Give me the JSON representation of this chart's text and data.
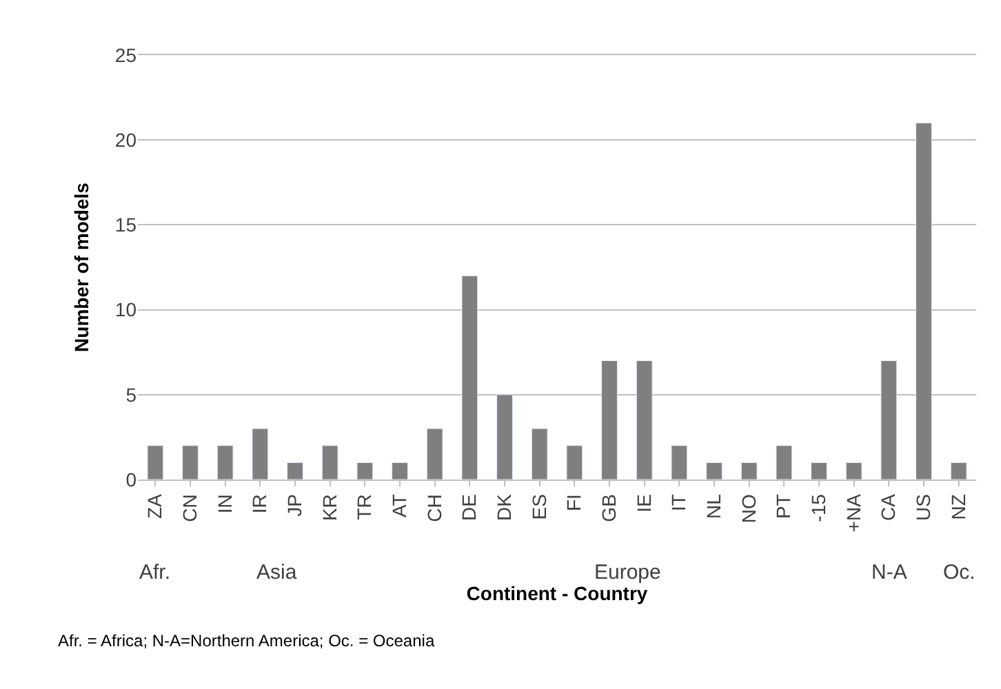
{
  "chart_data": {
    "type": "bar",
    "xlabel": "Continent - Country",
    "ylabel": "Number of models",
    "categories": [
      "ZA",
      "CN",
      "IN",
      "IR",
      "JP",
      "KR",
      "TR",
      "AT",
      "CH",
      "DE",
      "DK",
      "ES",
      "FI",
      "GB",
      "IE",
      "IT",
      "NL",
      "NO",
      "PT",
      "-15",
      "+NA",
      "CA",
      "US",
      "NZ"
    ],
    "values": [
      2,
      2,
      2,
      3,
      1,
      2,
      1,
      1,
      3,
      12,
      5,
      3,
      2,
      7,
      7,
      2,
      1,
      1,
      2,
      1,
      1,
      7,
      21,
      1
    ],
    "color": "#7f7f7f",
    "ylim": [
      0,
      25
    ],
    "yticks": [
      0,
      5,
      10,
      15,
      20,
      25
    ],
    "grid": "y",
    "legend": false,
    "annotations": [
      "Afr.",
      "Asia",
      "Europe",
      "N-A",
      "Oc.",
      "Afr. = Africa; N-A=Northern America; Oc. = Oceania"
    ]
  }
}
